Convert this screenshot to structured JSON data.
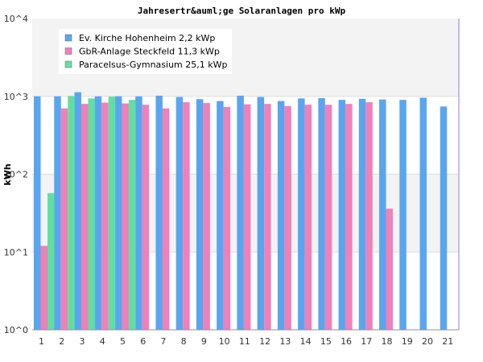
{
  "chart_data": {
    "type": "bar",
    "title": "Jahresertr&auml;ge Solaranlagen pro kWp",
    "ylabel": "kWh",
    "xlabel": "",
    "yscale": "log",
    "ylim": [
      1,
      10000
    ],
    "ytick_labels": [
      "10^0",
      "10^1",
      "10^2",
      "10^3",
      "10^4"
    ],
    "legend_position": "top-left",
    "categories": [
      "1",
      "2",
      "3",
      "4",
      "5",
      "6",
      "7",
      "8",
      "9",
      "10",
      "11",
      "12",
      "13",
      "14",
      "15",
      "16",
      "17",
      "18",
      "19",
      "20",
      "21"
    ],
    "series": [
      {
        "name": "Ev. Kirche Hohenheim 2,2 kWp",
        "color": "#5aa5f0",
        "values": [
          1000,
          1000,
          1130,
          1000,
          1000,
          1000,
          1020,
          980,
          920,
          870,
          1020,
          980,
          870,
          940,
          950,
          900,
          930,
          910,
          900,
          960,
          740
        ]
      },
      {
        "name": "GbR-Anlage Steckfeld 11,3 kWp",
        "color": "#f080b8",
        "values": [
          12,
          700,
          800,
          830,
          810,
          780,
          700,
          840,
          820,
          730,
          790,
          800,
          750,
          780,
          780,
          800,
          840,
          36,
          null,
          null,
          null
        ]
      },
      {
        "name": "Paracelsus-Gymnasium 25,1 kWp",
        "color": "#60e0a0",
        "values": [
          57,
          1010,
          940,
          990,
          900,
          null,
          null,
          null,
          null,
          null,
          null,
          null,
          null,
          null,
          null,
          null,
          null,
          null,
          null,
          null,
          null
        ]
      }
    ]
  }
}
